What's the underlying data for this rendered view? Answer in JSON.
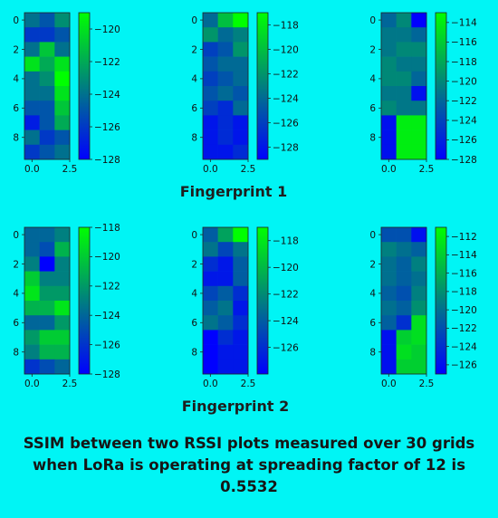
{
  "colors": {
    "background": "#00f5f5",
    "cmap_low": "#0000ff",
    "cmap_high": "#00ff00"
  },
  "labels": {
    "fingerprint1": "Fingerprint 1",
    "fingerprint2": "Fingerprint 2",
    "caption_line1": "SSIM between two RSSI plots measured over 30 grids",
    "caption_line2": "when LoRa is operating at spreading factor of 12 is",
    "caption_line3": "0.5532"
  },
  "chart_data": [
    {
      "type": "heatmap",
      "row": 1,
      "col": 1,
      "x_ticks": [
        "0.0",
        "2.5"
      ],
      "y_ticks": [
        "0",
        "2",
        "4",
        "6",
        "8"
      ],
      "colorbar": {
        "vmin": -128,
        "vmax": -119,
        "ticks": [
          -120,
          -122,
          -124,
          -126,
          -128
        ]
      },
      "values": [
        [
          -124,
          -125,
          -123
        ],
        [
          -126,
          -126,
          -125
        ],
        [
          -124,
          -121,
          -124
        ],
        [
          -120,
          -122,
          -120
        ],
        [
          -124,
          -123,
          -119
        ],
        [
          -124,
          -124,
          -120
        ],
        [
          -125,
          -125,
          -121
        ],
        [
          -127,
          -125,
          -122
        ],
        [
          -124,
          -126,
          -125
        ],
        [
          -126,
          -125,
          -124
        ]
      ]
    },
    {
      "type": "heatmap",
      "row": 1,
      "col": 2,
      "x_ticks": [
        "0.0",
        "2.5"
      ],
      "y_ticks": [
        "0",
        "2",
        "4",
        "6",
        "8"
      ],
      "colorbar": {
        "vmin": -129,
        "vmax": -117,
        "ticks": [
          -118,
          -120,
          -122,
          -124,
          -126,
          -128
        ]
      },
      "values": [
        [
          -124,
          -120,
          -117
        ],
        [
          -122,
          -124,
          -123
        ],
        [
          -126,
          -125,
          -122
        ],
        [
          -125,
          -124,
          -124
        ],
        [
          -126,
          -125,
          -124
        ],
        [
          -125,
          -124,
          -125
        ],
        [
          -126,
          -127,
          -124
        ],
        [
          -128,
          -127,
          -128
        ],
        [
          -128,
          -127,
          -128
        ],
        [
          -128,
          -128,
          -127
        ]
      ]
    },
    {
      "type": "heatmap",
      "row": 1,
      "col": 3,
      "x_ticks": [
        "0.0",
        "2.5"
      ],
      "y_ticks": [
        "0",
        "2",
        "4",
        "6",
        "8"
      ],
      "colorbar": {
        "vmin": -128,
        "vmax": -113,
        "ticks": [
          -114,
          -116,
          -118,
          -120,
          -122,
          -124,
          -126,
          -128
        ]
      },
      "values": [
        [
          -122,
          -120,
          -128
        ],
        [
          -121,
          -121,
          -122
        ],
        [
          -121,
          -120,
          -120
        ],
        [
          -120,
          -121,
          -121
        ],
        [
          -120,
          -120,
          -122
        ],
        [
          -121,
          -121,
          -127
        ],
        [
          -120,
          -121,
          -121
        ],
        [
          -127,
          -114,
          -114
        ],
        [
          -127,
          -114,
          -114
        ],
        [
          -127,
          -114,
          -114
        ]
      ]
    },
    {
      "type": "heatmap",
      "row": 2,
      "col": 1,
      "x_ticks": [
        "0.0",
        "2.5"
      ],
      "y_ticks": [
        "0",
        "2",
        "4",
        "6",
        "8"
      ],
      "colorbar": {
        "vmin": -128,
        "vmax": -118,
        "ticks": [
          -118,
          -120,
          -122,
          -124,
          -126,
          -128
        ]
      },
      "values": [
        [
          -124,
          -124,
          -123
        ],
        [
          -124,
          -125,
          -121
        ],
        [
          -123,
          -128,
          -123
        ],
        [
          -120,
          -123,
          -123
        ],
        [
          -119,
          -122,
          -122
        ],
        [
          -121,
          -121,
          -119
        ],
        [
          -124,
          -124,
          -122
        ],
        [
          -122,
          -120,
          -120
        ],
        [
          -123,
          -121,
          -121
        ],
        [
          -126,
          -125,
          -124
        ]
      ]
    },
    {
      "type": "heatmap",
      "row": 2,
      "col": 2,
      "x_ticks": [
        "0.0",
        "2.5"
      ],
      "y_ticks": [
        "0",
        "2",
        "4",
        "6",
        "8"
      ],
      "colorbar": {
        "vmin": -128,
        "vmax": -117,
        "ticks": [
          -118,
          -120,
          -122,
          -124,
          -126
        ]
      },
      "values": [
        [
          -124,
          -121,
          -117
        ],
        [
          -123,
          -125,
          -123
        ],
        [
          -126,
          -127,
          -124
        ],
        [
          -127,
          -127,
          -124
        ],
        [
          -125,
          -124,
          -126
        ],
        [
          -124,
          -123,
          -127
        ],
        [
          -123,
          -124,
          -126
        ],
        [
          -128,
          -126,
          -127
        ],
        [
          -128,
          -127,
          -127
        ],
        [
          -128,
          -127,
          -127
        ]
      ]
    },
    {
      "type": "heatmap",
      "row": 2,
      "col": 3,
      "x_ticks": [
        "0.0",
        "2.5"
      ],
      "y_ticks": [
        "0",
        "2",
        "4",
        "6",
        "8"
      ],
      "colorbar": {
        "vmin": -127,
        "vmax": -111,
        "ticks": [
          -112,
          -114,
          -116,
          -118,
          -120,
          -122,
          -124,
          -126
        ]
      },
      "values": [
        [
          -122,
          -122,
          -126
        ],
        [
          -119,
          -120,
          -121
        ],
        [
          -120,
          -121,
          -119
        ],
        [
          -120,
          -121,
          -120
        ],
        [
          -121,
          -122,
          -119
        ],
        [
          -120,
          -121,
          -118
        ],
        [
          -121,
          -124,
          -113
        ],
        [
          -126,
          -114,
          -113
        ],
        [
          -126,
          -113,
          -114
        ],
        [
          -126,
          -114,
          -114
        ]
      ]
    }
  ]
}
